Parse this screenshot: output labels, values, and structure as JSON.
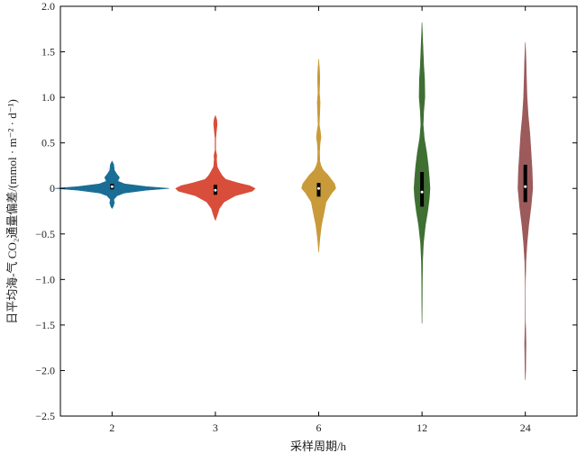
{
  "chart_data": {
    "type": "violin",
    "title": "",
    "xlabel": "采样周期/h",
    "ylabel": "日平均海-气 CO₂通量偏差/(mmol · m⁻² · d⁻¹)",
    "ylim": [
      -2.5,
      2.0
    ],
    "yticks": [
      -2.5,
      -2.0,
      -1.5,
      -1.0,
      -0.5,
      0,
      0.5,
      1.0,
      1.5,
      2.0
    ],
    "ytick_labels": [
      "−2.5",
      "−2.0",
      "−1.5",
      "−1.0",
      "−0.5",
      "0",
      "0.5",
      "1.0",
      "1.5",
      "2.0"
    ],
    "categories": [
      "2",
      "3",
      "6",
      "12",
      "24"
    ],
    "grid": false,
    "legend": "none",
    "series": [
      {
        "category": "2",
        "color": "#1a6e96",
        "median": 0.02,
        "q1": -0.01,
        "q3": 0.05,
        "density": [
          [
            -0.22,
            0.0
          ],
          [
            -0.2,
            0.02
          ],
          [
            -0.16,
            0.04
          ],
          [
            -0.12,
            0.03
          ],
          [
            -0.08,
            0.09
          ],
          [
            -0.05,
            0.22
          ],
          [
            -0.02,
            0.6
          ],
          [
            0.0,
            1.0
          ],
          [
            0.02,
            0.6
          ],
          [
            0.05,
            0.22
          ],
          [
            0.08,
            0.1
          ],
          [
            0.12,
            0.13
          ],
          [
            0.16,
            0.08
          ],
          [
            0.2,
            0.04
          ],
          [
            0.26,
            0.03
          ],
          [
            0.3,
            0.0
          ]
        ]
      },
      {
        "category": "3",
        "color": "#d84e3a",
        "median": -0.02,
        "q1": -0.07,
        "q3": 0.04,
        "density": [
          [
            -0.35,
            0.0
          ],
          [
            -0.3,
            0.03
          ],
          [
            -0.22,
            0.07
          ],
          [
            -0.15,
            0.15
          ],
          [
            -0.08,
            0.35
          ],
          [
            -0.03,
            0.65
          ],
          [
            0.0,
            0.7
          ],
          [
            0.03,
            0.6
          ],
          [
            0.06,
            0.4
          ],
          [
            0.1,
            0.18
          ],
          [
            0.14,
            0.12
          ],
          [
            0.18,
            0.08
          ],
          [
            0.24,
            0.03
          ],
          [
            0.32,
            0.02
          ],
          [
            0.36,
            0.025
          ],
          [
            0.42,
            0.005
          ],
          [
            0.55,
            0.005
          ],
          [
            0.7,
            0.03
          ],
          [
            0.75,
            0.025
          ],
          [
            0.8,
            0.0
          ]
        ]
      },
      {
        "category": "6",
        "color": "#c99a3a",
        "median": 0.0,
        "q1": -0.09,
        "q3": 0.06,
        "density": [
          [
            -0.7,
            0.0
          ],
          [
            -0.55,
            0.02
          ],
          [
            -0.4,
            0.05
          ],
          [
            -0.28,
            0.09
          ],
          [
            -0.15,
            0.13
          ],
          [
            -0.05,
            0.23
          ],
          [
            0.0,
            0.3
          ],
          [
            0.05,
            0.28
          ],
          [
            0.1,
            0.22
          ],
          [
            0.15,
            0.16
          ],
          [
            0.2,
            0.08
          ],
          [
            0.25,
            0.04
          ],
          [
            0.3,
            0.02
          ],
          [
            0.4,
            0.015
          ],
          [
            0.5,
            0.025
          ],
          [
            0.56,
            0.04
          ],
          [
            0.62,
            0.03
          ],
          [
            0.7,
            0.01
          ],
          [
            0.85,
            0.02
          ],
          [
            0.95,
            0.025
          ],
          [
            1.05,
            0.012
          ],
          [
            1.2,
            0.02
          ],
          [
            1.3,
            0.015
          ],
          [
            1.42,
            0.0
          ]
        ]
      },
      {
        "category": "12",
        "color": "#3f6f32",
        "median": -0.04,
        "q1": -0.2,
        "q3": 0.18,
        "density": [
          [
            -1.48,
            0.0
          ],
          [
            -1.3,
            0.003
          ],
          [
            -1.0,
            0.006
          ],
          [
            -0.8,
            0.01
          ],
          [
            -0.6,
            0.025
          ],
          [
            -0.4,
            0.06
          ],
          [
            -0.25,
            0.1
          ],
          [
            -0.1,
            0.13
          ],
          [
            0.0,
            0.14
          ],
          [
            0.1,
            0.13
          ],
          [
            0.25,
            0.11
          ],
          [
            0.4,
            0.08
          ],
          [
            0.55,
            0.04
          ],
          [
            0.7,
            0.02
          ],
          [
            0.85,
            0.03
          ],
          [
            1.0,
            0.05
          ],
          [
            1.2,
            0.045
          ],
          [
            1.35,
            0.03
          ],
          [
            1.5,
            0.02
          ],
          [
            1.65,
            0.01
          ],
          [
            1.82,
            0.0
          ]
        ]
      },
      {
        "category": "24",
        "color": "#9c5a5a",
        "median": 0.02,
        "q1": -0.15,
        "q3": 0.26,
        "density": [
          [
            -2.1,
            0.0
          ],
          [
            -2.0,
            0.005
          ],
          [
            -1.85,
            0.008
          ],
          [
            -1.7,
            0.012
          ],
          [
            -1.55,
            0.006
          ],
          [
            -1.45,
            0.001
          ],
          [
            -1.1,
            0.0
          ],
          [
            -1.0,
            0.002
          ],
          [
            -0.8,
            0.01
          ],
          [
            -0.6,
            0.03
          ],
          [
            -0.4,
            0.06
          ],
          [
            -0.2,
            0.1
          ],
          [
            0.0,
            0.13
          ],
          [
            0.2,
            0.12
          ],
          [
            0.4,
            0.1
          ],
          [
            0.6,
            0.08
          ],
          [
            0.8,
            0.05
          ],
          [
            1.0,
            0.03
          ],
          [
            1.2,
            0.02
          ],
          [
            1.4,
            0.012
          ],
          [
            1.5,
            0.006
          ],
          [
            1.6,
            0.0
          ]
        ]
      }
    ]
  }
}
